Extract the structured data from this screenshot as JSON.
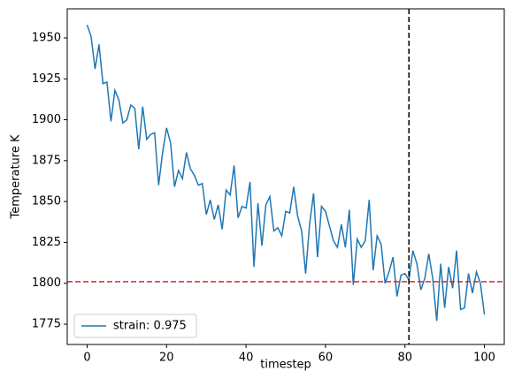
{
  "chart_data": {
    "type": "line",
    "xlabel": "timestep",
    "ylabel": "Temperature K",
    "x": [
      0,
      1,
      2,
      3,
      4,
      5,
      6,
      7,
      8,
      9,
      10,
      11,
      12,
      13,
      14,
      15,
      16,
      17,
      18,
      19,
      20,
      21,
      22,
      23,
      24,
      25,
      26,
      27,
      28,
      29,
      30,
      31,
      32,
      33,
      34,
      35,
      36,
      37,
      38,
      39,
      40,
      41,
      42,
      43,
      44,
      45,
      46,
      47,
      48,
      49,
      50,
      51,
      52,
      53,
      54,
      55,
      56,
      57,
      58,
      59,
      60,
      61,
      62,
      63,
      64,
      65,
      66,
      67,
      68,
      69,
      70,
      71,
      72,
      73,
      74,
      75,
      76,
      77,
      78,
      79,
      80,
      81,
      82,
      83,
      84,
      85,
      86,
      87,
      88,
      89,
      90,
      91,
      92,
      93,
      94,
      95,
      96,
      97,
      98,
      99,
      100
    ],
    "series": [
      {
        "name": "strain: 0.975",
        "color": "#1f77b4",
        "values": [
          1958,
          1951,
          1931,
          1946,
          1922,
          1923,
          1899,
          1918,
          1912,
          1898,
          1900,
          1909,
          1907,
          1882,
          1908,
          1888,
          1891,
          1892,
          1860,
          1880,
          1895,
          1886,
          1859,
          1869,
          1864,
          1880,
          1870,
          1866,
          1860,
          1861,
          1842,
          1851,
          1839,
          1848,
          1833,
          1857,
          1854,
          1872,
          1840,
          1847,
          1846,
          1862,
          1810,
          1849,
          1823,
          1848,
          1853,
          1832,
          1834,
          1829,
          1844,
          1843,
          1859,
          1841,
          1832,
          1806,
          1836,
          1855,
          1816,
          1847,
          1844,
          1835,
          1826,
          1822,
          1836,
          1822,
          1845,
          1799,
          1827,
          1822,
          1826,
          1851,
          1808,
          1829,
          1824,
          1800,
          1807,
          1816,
          1792,
          1805,
          1806,
          1802,
          1820,
          1812,
          1796,
          1803,
          1818,
          1803,
          1777,
          1812,
          1785,
          1810,
          1797,
          1820,
          1784,
          1785,
          1806,
          1794,
          1807,
          1800,
          1781
        ]
      }
    ],
    "vline": {
      "x": 81,
      "color": "#000000"
    },
    "hline": {
      "y": 1801,
      "color": "#d62728"
    },
    "xlim": [
      -5,
      105
    ],
    "xticks": [
      0,
      20,
      40,
      60,
      80,
      100
    ],
    "ylim": [
      1762.6,
      1967.8
    ],
    "yticks": [
      1775,
      1800,
      1825,
      1850,
      1875,
      1900,
      1925,
      1950
    ],
    "legend": "lower left"
  }
}
